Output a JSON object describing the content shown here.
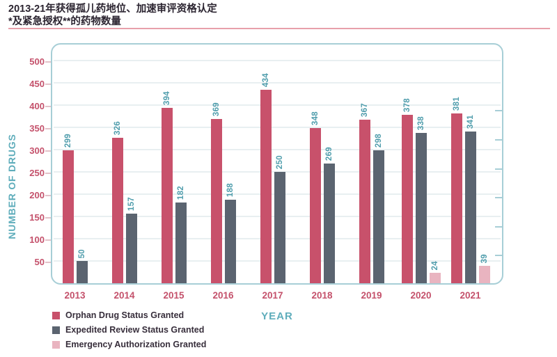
{
  "page": {
    "title_line1": "2013-21年获得孤儿药地位、加速审评资格认定",
    "title_line2": "*及紧急授权**的药物数量"
  },
  "chart_data": {
    "type": "bar",
    "title": "2013-21年获得孤儿药地位、加速审评资格认定 *及紧急授权**的药物数量",
    "categories": [
      "2013",
      "2014",
      "2015",
      "2016",
      "2017",
      "2018",
      "2019",
      "2020",
      "2021"
    ],
    "series": [
      {
        "name": "Orphan Drug Status Granted",
        "color": "#c8516b",
        "values": [
          299,
          326,
          394,
          369,
          434,
          348,
          367,
          378,
          381
        ]
      },
      {
        "name": "Expedited Review Status Granted",
        "color": "#5b6470",
        "values": [
          50,
          157,
          182,
          188,
          250,
          269,
          298,
          338,
          341
        ]
      },
      {
        "name": "Emergency Authorization Granted",
        "color": "#e9b4c0",
        "values": [
          null,
          null,
          null,
          null,
          null,
          null,
          null,
          24,
          39
        ]
      }
    ],
    "xlabel": "YEAR",
    "ylabel": "NUMBER OF DRUGS",
    "y_ticks": [
      50,
      100,
      150,
      200,
      250,
      300,
      350,
      400,
      450,
      500
    ],
    "ylim": [
      0,
      540
    ],
    "grid": true,
    "legend_position": "bottom-left",
    "value_labels": "rotated-90-teal"
  },
  "colors": {
    "accent_red": "#c8516b",
    "accent_gray": "#5b6470",
    "accent_pink": "#e9b4c0",
    "value_label_teal": "#4f9dac",
    "axis_title_teal": "#5fadbb",
    "plot_border_teal": "#a7ced6",
    "gridline": "#e8eff1",
    "title_text": "#2b2430",
    "divider_pink": "#e7a0aa"
  }
}
